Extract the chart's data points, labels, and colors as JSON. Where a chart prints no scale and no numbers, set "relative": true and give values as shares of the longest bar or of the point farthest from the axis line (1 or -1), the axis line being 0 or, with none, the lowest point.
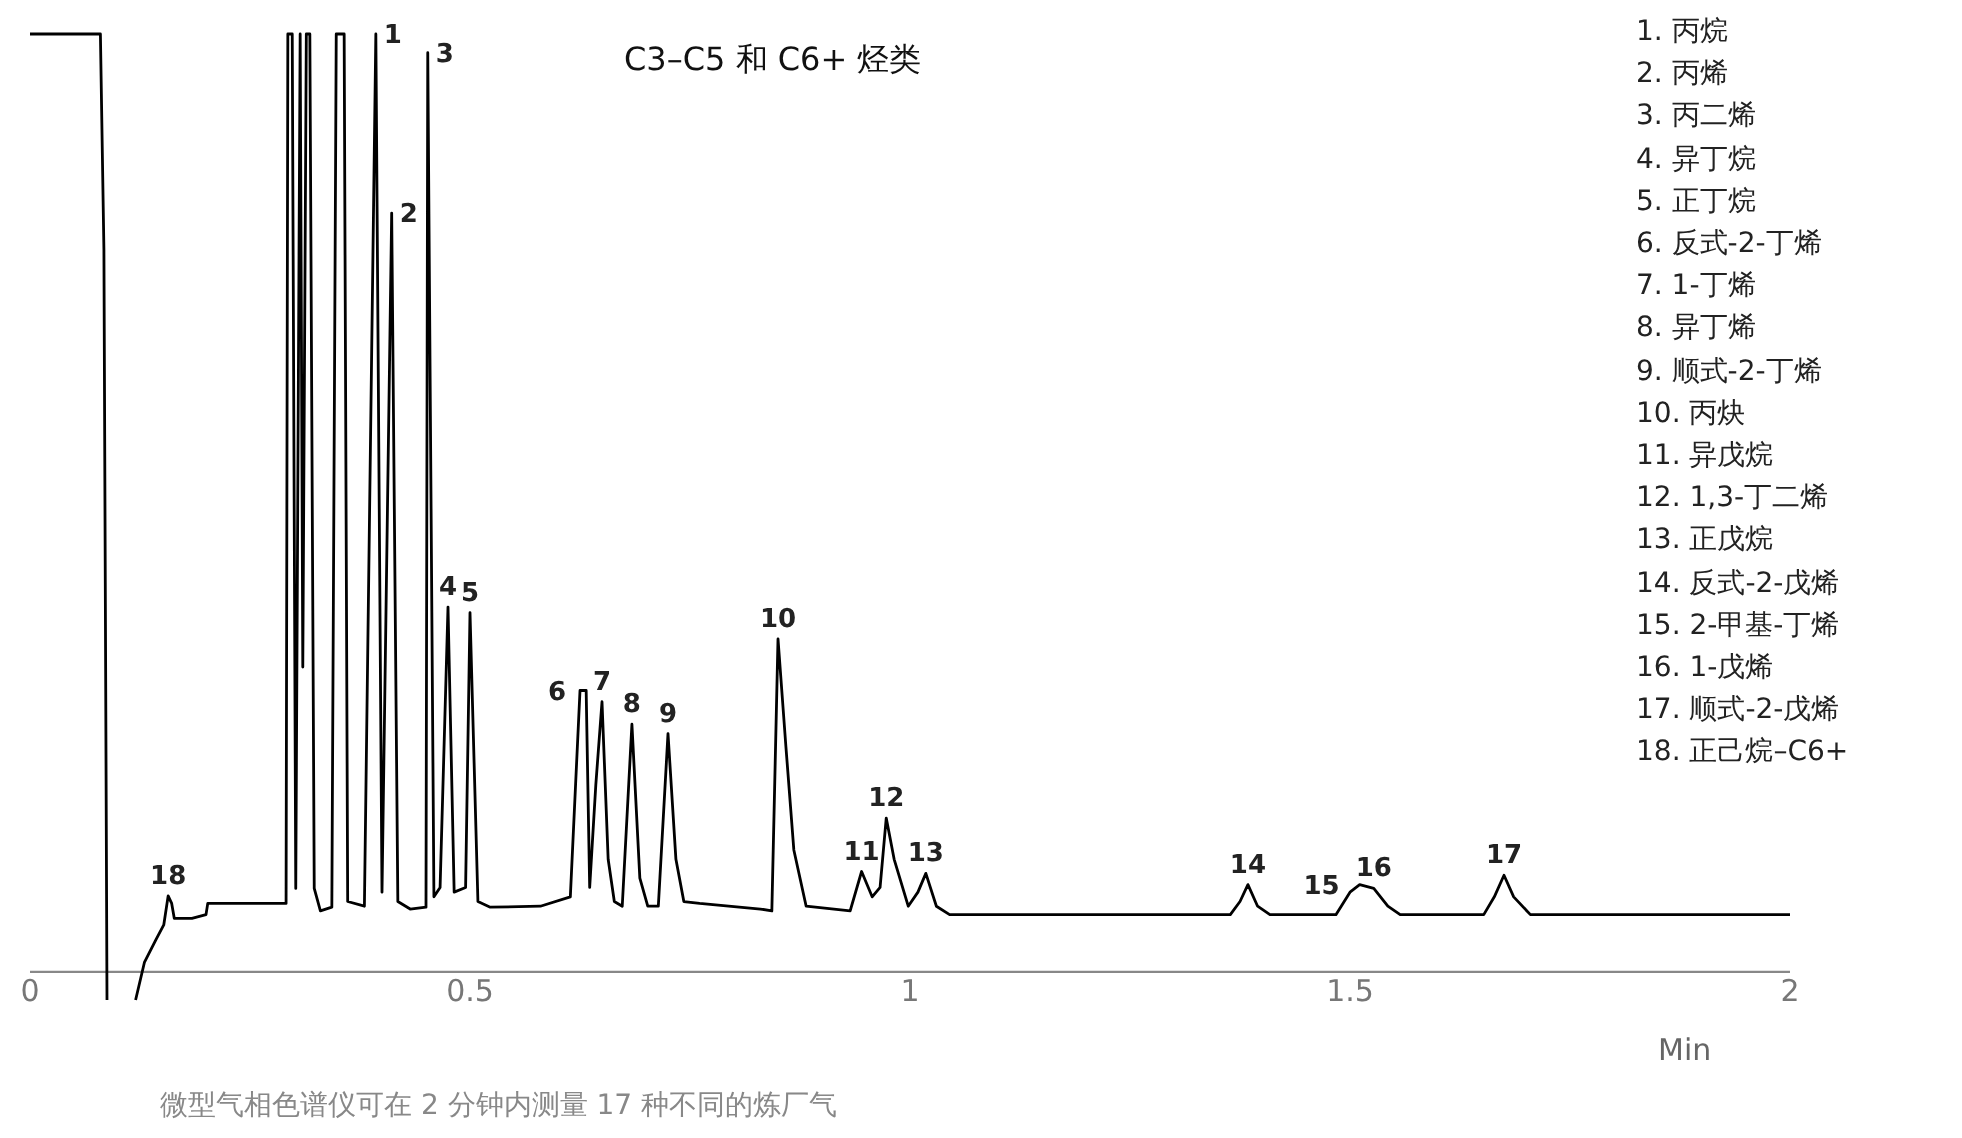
{
  "chart_data": {
    "type": "line",
    "title": "C3–C5 和 C6+ 烃类",
    "xlabel": "Min",
    "relative": true,
    "xlim": [
      0,
      2
    ],
    "xticks": [
      0,
      0.5,
      1,
      1.5,
      2
    ],
    "marker": "none",
    "line_style": "solid",
    "series": [
      {
        "color": "#000000",
        "x": [
          0,
          0.08,
          0.084,
          0.0875,
          0.1,
          0.12,
          0.13,
          0.143,
          0.152,
          0.157,
          0.161,
          0.164,
          0.184,
          0.2,
          0.202,
          0.291,
          0.293,
          0.298,
          0.302,
          0.307,
          0.31,
          0.314,
          0.318,
          0.323,
          0.33,
          0.343,
          0.348,
          0.357,
          0.361,
          0.38,
          0.393,
          0.4,
          0.411,
          0.418,
          0.432,
          0.45,
          0.452,
          0.459,
          0.466,
          0.475,
          0.482,
          0.495,
          0.5,
          0.509,
          0.523,
          0.58,
          0.614,
          0.62,
          0.625,
          0.632,
          0.636,
          0.643,
          0.65,
          0.657,
          0.664,
          0.673,
          0.684,
          0.693,
          0.702,
          0.714,
          0.725,
          0.734,
          0.743,
          0.761,
          0.83,
          0.843,
          0.85,
          0.859,
          0.868,
          0.882,
          0.932,
          0.945,
          0.957,
          0.966,
          0.973,
          0.982,
          0.998,
          1.009,
          1.018,
          1.03,
          1.045,
          1.364,
          1.375,
          1.384,
          1.395,
          1.409,
          1.484,
          1.5,
          1.511,
          1.527,
          1.543,
          1.557,
          1.652,
          1.664,
          1.675,
          1.686,
          1.705,
          2
        ],
        "values": [
          1,
          1,
          0.77,
          -0.03,
          null,
          -0.03,
          0.01,
          0.034,
          0.05,
          0.081,
          0.073,
          0.057,
          0.057,
          0.061,
          0.073,
          0.073,
          1,
          1,
          0.089,
          1,
          0.325,
          1,
          1,
          0.089,
          0.065,
          0.069,
          1,
          1,
          0.075,
          0.07,
          1,
          0.085,
          0.809,
          0.075,
          0.067,
          0.069,
          0.98,
          0.08,
          0.09,
          0.389,
          0.085,
          0.09,
          0.383,
          0.075,
          0.069,
          0.07,
          0.08,
          0.2,
          0.3,
          0.3,
          0.09,
          0.2,
          0.288,
          0.12,
          0.075,
          0.07,
          0.264,
          0.1,
          0.07,
          0.07,
          0.254,
          0.12,
          0.075,
          0.073,
          0.067,
          0.065,
          0.355,
          0.24,
          0.13,
          0.07,
          0.065,
          0.107,
          0.08,
          0.09,
          0.164,
          0.12,
          0.07,
          0.085,
          0.105,
          0.07,
          0.061,
          0.061,
          0.075,
          0.093,
          0.07,
          0.061,
          0.061,
          0.085,
          0.093,
          0.089,
          0.07,
          0.061,
          0.061,
          0.08,
          0.103,
          0.08,
          0.061,
          0.061
        ]
      }
    ],
    "annotations": [
      "微型气相色谱仪可在 2 分钟内测量 17 种不同的炼厂气",
      "1. 丙烷",
      "2. 丙烯",
      "3. 丙二烯",
      "4. 异丁烷",
      "5. 正丁烷",
      "6. 反式-2-丁烯",
      "7. 1-丁烯",
      "8. 异丁烯",
      "9. 顺式-2-丁烯",
      "10. 丙炔",
      "11. 异戊烷",
      "12. 1,3-丁二烯",
      "13. 正戊烷",
      "14. 反式-2-戊烯",
      "15. 2-甲基-丁烯",
      "16. 1-戊烯",
      "17. 顺式-2-戊烯",
      "18. 正己烷–C6+",
      {
        "text": "1",
        "x": 0.393,
        "y": 1
      },
      {
        "text": "2",
        "x": 0.411,
        "y": 0.809
      },
      {
        "text": "3",
        "x": 0.452,
        "y": 0.98
      },
      {
        "text": "4",
        "x": 0.475,
        "y": 0.389
      },
      {
        "text": "5",
        "x": 0.5,
        "y": 0.383
      },
      {
        "text": "6",
        "x": 0.632,
        "y": 0.3
      },
      {
        "text": "7",
        "x": 0.65,
        "y": 0.288
      },
      {
        "text": "8",
        "x": 0.684,
        "y": 0.264
      },
      {
        "text": "9",
        "x": 0.725,
        "y": 0.254
      },
      {
        "text": "10",
        "x": 0.85,
        "y": 0.355
      },
      {
        "text": "11",
        "x": 0.945,
        "y": 0.107
      },
      {
        "text": "12",
        "x": 0.973,
        "y": 0.164
      },
      {
        "text": "13",
        "x": 1.018,
        "y": 0.105
      },
      {
        "text": "14",
        "x": 1.384,
        "y": 0.093
      },
      {
        "text": "15",
        "x": 1.511,
        "y": 0.093
      },
      {
        "text": "16",
        "x": 1.527,
        "y": 0.089
      },
      {
        "text": "17",
        "x": 1.675,
        "y": 0.103
      },
      {
        "text": "18",
        "x": 0.157,
        "y": 0.081
      }
    ]
  }
}
